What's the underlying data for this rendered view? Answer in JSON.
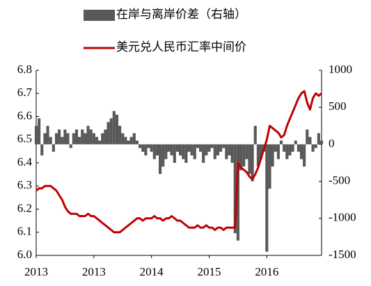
{
  "chart_data": {
    "type": "line",
    "categories": [
      "2013",
      null,
      null,
      null,
      null,
      null,
      null,
      null,
      null,
      null,
      null,
      null,
      null,
      null,
      null,
      null,
      null,
      null,
      null,
      null,
      "2013",
      null,
      null,
      null,
      null,
      null,
      null,
      null,
      null,
      null,
      null,
      null,
      null,
      null,
      null,
      null,
      null,
      null,
      null,
      null,
      "2014",
      null,
      null,
      null,
      null,
      null,
      null,
      null,
      null,
      null,
      null,
      null,
      null,
      null,
      null,
      null,
      null,
      null,
      null,
      null,
      "2015",
      null,
      null,
      null,
      null,
      null,
      null,
      null,
      null,
      null,
      null,
      null,
      null,
      null,
      null,
      null,
      null,
      null,
      null,
      null,
      "2016",
      null,
      null,
      null,
      null,
      null,
      null,
      null,
      null,
      null,
      null,
      null,
      null,
      null,
      null,
      null,
      null,
      null,
      null,
      null
    ],
    "series": [
      {
        "name": "在岸与离岸价差（右轴）",
        "color": "#595959",
        "type": "bar",
        "axis": "y2",
        "values": [
          250,
          350,
          -150,
          150,
          250,
          100,
          -100,
          150,
          200,
          100,
          200,
          150,
          -50,
          150,
          200,
          100,
          200,
          150,
          250,
          200,
          150,
          100,
          50,
          150,
          200,
          300,
          350,
          450,
          400,
          250,
          150,
          100,
          50,
          100,
          150,
          50,
          -50,
          -100,
          -150,
          -50,
          -100,
          -200,
          -150,
          -400,
          -300,
          -200,
          -100,
          -150,
          -250,
          -100,
          -150,
          -200,
          -250,
          -100,
          -150,
          -200,
          -50,
          -100,
          -250,
          -150,
          -100,
          -50,
          -200,
          -150,
          -100,
          -50,
          -200,
          -150,
          -250,
          -1200,
          -1300,
          -350,
          -300,
          -200,
          -400,
          -500,
          250,
          -300,
          -200,
          -100,
          -1450,
          -600,
          -300,
          -100,
          -200,
          50,
          -100,
          -200,
          -150,
          -100,
          50,
          -100,
          -200,
          -300,
          200,
          100,
          -100,
          -50,
          150,
          50
        ]
      },
      {
        "name": "美元兑人民币汇率中间价",
        "color": "#c00000",
        "type": "line",
        "values": [
          6.28,
          6.29,
          6.29,
          6.3,
          6.3,
          6.3,
          6.29,
          6.28,
          6.26,
          6.24,
          6.21,
          6.19,
          6.18,
          6.18,
          6.18,
          6.17,
          6.17,
          6.17,
          6.18,
          6.17,
          6.17,
          6.16,
          6.15,
          6.14,
          6.13,
          6.12,
          6.11,
          6.1,
          6.1,
          6.1,
          6.11,
          6.12,
          6.13,
          6.14,
          6.15,
          6.16,
          6.16,
          6.15,
          6.16,
          6.16,
          6.16,
          6.17,
          6.16,
          6.16,
          6.15,
          6.16,
          6.16,
          6.17,
          6.16,
          6.15,
          6.15,
          6.14,
          6.13,
          6.12,
          6.12,
          6.12,
          6.13,
          6.12,
          6.12,
          6.13,
          6.12,
          6.12,
          6.11,
          6.12,
          6.12,
          6.11,
          6.12,
          6.12,
          6.12,
          6.12,
          6.4,
          6.38,
          6.37,
          6.36,
          6.34,
          6.33,
          6.35,
          6.38,
          6.42,
          6.46,
          6.5,
          6.56,
          6.55,
          6.54,
          6.53,
          6.51,
          6.52,
          6.56,
          6.59,
          6.62,
          6.65,
          6.68,
          6.7,
          6.71,
          6.66,
          6.63,
          6.68,
          6.7,
          6.69,
          6.7
        ]
      }
    ],
    "ylim": [
      6.0,
      6.8
    ],
    "yticks": [
      {
        "value": 6.0,
        "label": "6.0"
      },
      6.1,
      6.2,
      6.3,
      6.4,
      6.5,
      6.6,
      6.7,
      6.8
    ],
    "y2lim": [
      -1500,
      1000
    ],
    "y2ticks": [
      -1500,
      -1000,
      -500,
      0,
      500,
      1000
    ]
  }
}
